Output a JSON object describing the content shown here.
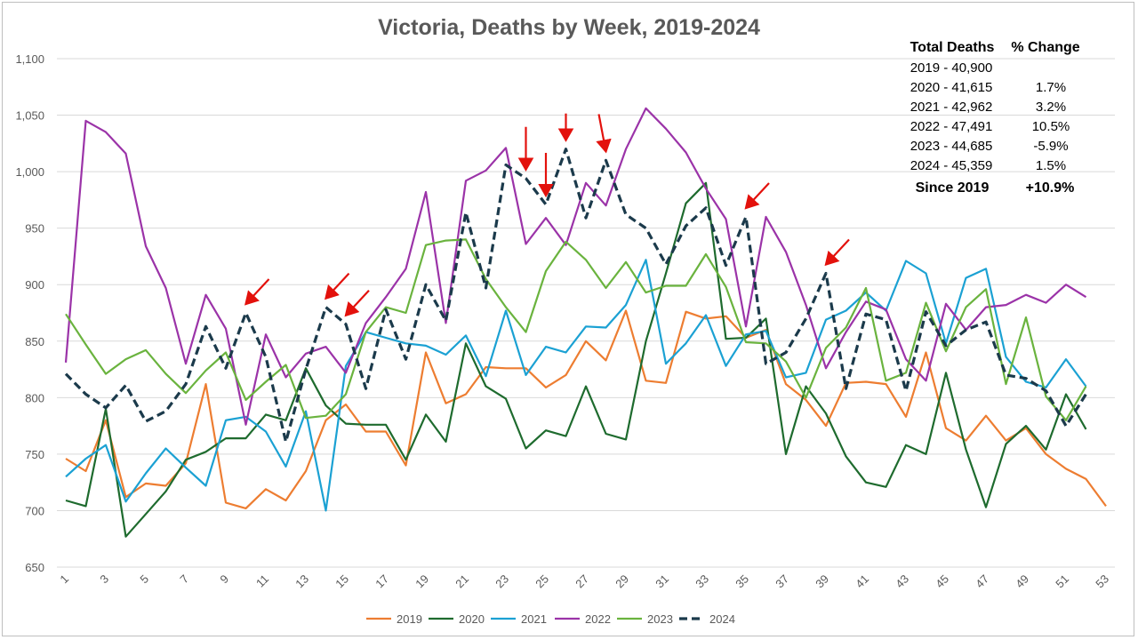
{
  "chart_data": {
    "type": "line",
    "title": "Victoria, Deaths by Week, 2019-2024",
    "xlabel": "",
    "ylabel": "",
    "xlim": [
      1,
      53
    ],
    "ylim": [
      650,
      1100
    ],
    "y_ticks": [
      "650",
      "700",
      "750",
      "800",
      "850",
      "900",
      "950",
      "1,000",
      "1,050",
      "1,100"
    ],
    "x_ticks": [
      "1",
      "3",
      "5",
      "7",
      "9",
      "11",
      "13",
      "15",
      "17",
      "19",
      "21",
      "23",
      "25",
      "27",
      "29",
      "31",
      "33",
      "35",
      "37",
      "39",
      "41",
      "43",
      "45",
      "47",
      "49",
      "51",
      "53"
    ],
    "grid": "horizontal",
    "legend_position": "bottom",
    "series": [
      {
        "name": "2019",
        "color": "#ED7D31",
        "dashed": false,
        "values": [
          746,
          735,
          780,
          712,
          724,
          722,
          742,
          812,
          707,
          702,
          719,
          709,
          735,
          780,
          794,
          770,
          770,
          740,
          840,
          795,
          803,
          827,
          826,
          826,
          809,
          820,
          850,
          833,
          877,
          815,
          813,
          876,
          870,
          872,
          853,
          860,
          812,
          798,
          775,
          813,
          814,
          812,
          783,
          840,
          773,
          762,
          784,
          762,
          773,
          750,
          737,
          728,
          704
        ]
      },
      {
        "name": "2020",
        "color": "#1E6B2E",
        "dashed": false,
        "values": [
          709,
          704,
          790,
          677,
          697,
          717,
          745,
          752,
          764,
          764,
          785,
          780,
          826,
          793,
          777,
          776,
          776,
          745,
          785,
          761,
          848,
          810,
          799,
          755,
          771,
          766,
          810,
          768,
          763,
          850,
          910,
          972,
          990,
          852,
          853,
          870,
          750,
          810,
          786,
          748,
          725,
          721,
          758,
          750,
          822,
          754,
          703,
          759,
          775,
          754,
          803,
          772
        ]
      },
      {
        "name": "2021",
        "color": "#1BA1D3",
        "dashed": false,
        "values": [
          730,
          746,
          758,
          708,
          733,
          755,
          738,
          722,
          780,
          783,
          770,
          739,
          788,
          700,
          828,
          858,
          853,
          848,
          846,
          838,
          855,
          819,
          877,
          820,
          845,
          840,
          863,
          862,
          882,
          922,
          830,
          848,
          873,
          828,
          856,
          859,
          818,
          822,
          869,
          877,
          893,
          877,
          921,
          910,
          848,
          906,
          914,
          836,
          814,
          809,
          834,
          810
        ]
      },
      {
        "name": "2022",
        "color": "#9B33A8",
        "dashed": false,
        "values": [
          831,
          1045,
          1035,
          1016,
          934,
          897,
          830,
          891,
          861,
          776,
          856,
          818,
          839,
          845,
          822,
          866,
          889,
          914,
          982,
          866,
          992,
          1001,
          1021,
          936,
          959,
          935,
          990,
          970,
          1020,
          1056,
          1038,
          1017,
          985,
          958,
          863,
          960,
          929,
          882,
          826,
          858,
          885,
          878,
          834,
          815,
          883,
          860,
          880,
          882,
          891,
          884,
          900,
          889
        ]
      },
      {
        "name": "2023",
        "color": "#6AB33E",
        "dashed": false,
        "values": [
          874,
          847,
          821,
          834,
          842,
          821,
          804,
          824,
          840,
          798,
          814,
          829,
          782,
          784,
          803,
          858,
          880,
          875,
          935,
          939,
          940,
          905,
          880,
          858,
          912,
          938,
          922,
          897,
          920,
          893,
          899,
          899,
          927,
          898,
          849,
          848,
          832,
          800,
          844,
          862,
          897,
          815,
          822,
          884,
          841,
          880,
          896,
          812,
          871,
          801,
          780,
          810
        ]
      },
      {
        "name": "2024",
        "color": "#1B3A4B",
        "dashed": true,
        "values": [
          821,
          803,
          791,
          811,
          779,
          788,
          812,
          863,
          826,
          875,
          836,
          761,
          825,
          880,
          865,
          808,
          878,
          834,
          900,
          868,
          964,
          897,
          1006,
          994,
          971,
          1020,
          959,
          1010,
          962,
          950,
          918,
          952,
          968,
          917,
          960,
          830,
          840,
          870,
          910,
          808,
          874,
          869,
          806,
          876,
          846,
          860,
          867,
          820,
          817,
          806,
          775,
          803
        ]
      }
    ],
    "arrows_at_week": [
      10,
      14,
      15,
      24,
      25,
      26,
      28,
      35,
      39
    ],
    "summary_table": {
      "header": [
        "Total Deaths",
        "% Change"
      ],
      "rows": [
        [
          "2019 - 40,900",
          ""
        ],
        [
          "2020 - 41,615",
          "1.7%"
        ],
        [
          "2021 - 42,962",
          "3.2%"
        ],
        [
          "2022 - 47,491",
          "10.5%"
        ],
        [
          "2023 - 44,685",
          "-5.9%"
        ],
        [
          "2024 - 45,359",
          "1.5%"
        ]
      ],
      "total": [
        "Since 2019",
        "+10.9%"
      ]
    }
  }
}
